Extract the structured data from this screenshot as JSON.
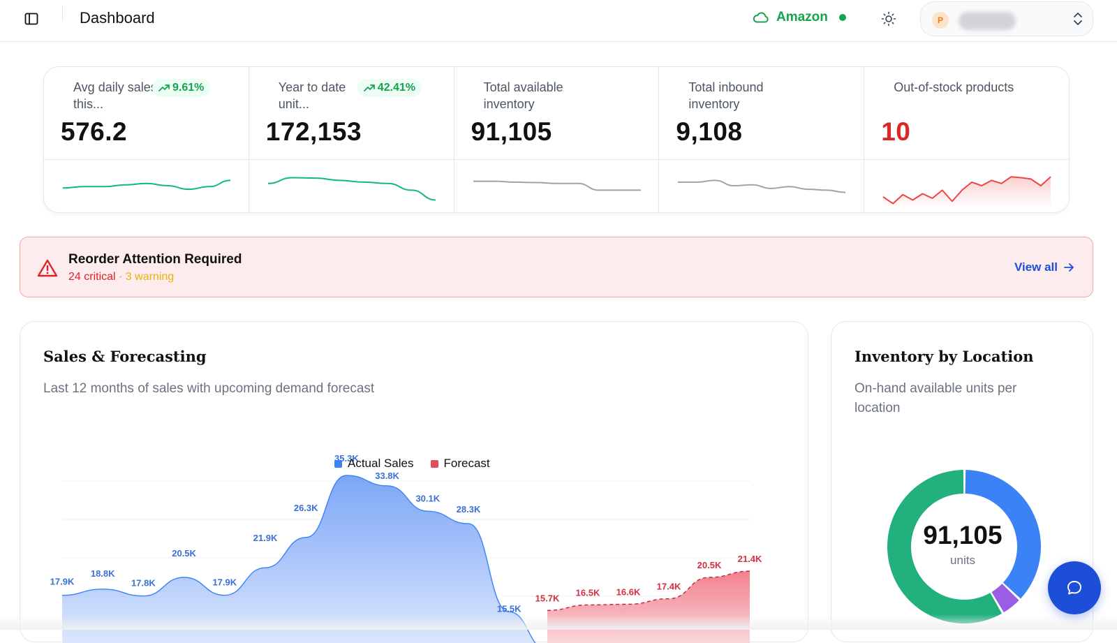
{
  "header": {
    "title": "Dashboard",
    "platform": "Amazon",
    "account_initial": "P"
  },
  "stats": [
    {
      "label": "Avg daily sales this...",
      "badge": "9.61%",
      "value": "576.2",
      "spark": [
        0.55,
        0.52,
        0.52,
        0.48,
        0.45,
        0.5,
        0.58,
        0.52,
        0.38
      ],
      "color": "#10b981"
    },
    {
      "label": "Year to date unit...",
      "badge": "42.41%",
      "value": "172,153",
      "spark": [
        0.45,
        0.32,
        0.33,
        0.38,
        0.42,
        0.45,
        0.6,
        0.82
      ],
      "color": "#10b981"
    },
    {
      "label": "Total available inventory",
      "badge": "",
      "value": "91,105",
      "spark": [
        0.4,
        0.4,
        0.42,
        0.43,
        0.45,
        0.45,
        0.6,
        0.6,
        0.6
      ],
      "color": "#9ca3af"
    },
    {
      "label": "Total inbound inventory",
      "badge": "",
      "value": "9,108",
      "spark": [
        0.42,
        0.42,
        0.38,
        0.5,
        0.48,
        0.56,
        0.52,
        0.58,
        0.6,
        0.65
      ],
      "color": "#9ca3af"
    },
    {
      "label": "Out-of-stock products",
      "badge": "",
      "value": "10",
      "value_color": "#dc2626",
      "spark": [
        0.75,
        0.9,
        0.7,
        0.82,
        0.68,
        0.78,
        0.6,
        0.85,
        0.6,
        0.42,
        0.5,
        0.38,
        0.45,
        0.3,
        0.32,
        0.35,
        0.5,
        0.3
      ],
      "color": "#ef4444"
    }
  ],
  "alert": {
    "title": "Reorder Attention Required",
    "critical": "24 critical",
    "separator": " · ",
    "warning": "3 warning",
    "action": "View all"
  },
  "sales_card": {
    "title": "Sales & Forecasting",
    "subtitle": "Last 12 months of sales with upcoming demand forecast"
  },
  "inventory_card": {
    "title": "Inventory by Location",
    "subtitle": "On-hand available units per location",
    "total": "91,105",
    "unit": "units"
  },
  "chart_data": [
    {
      "type": "area",
      "title": "Sales & Forecasting",
      "legend": [
        "Actual Sales",
        "Forecast"
      ],
      "legend_position": "top-center",
      "grid": true,
      "series": [
        {
          "name": "Actual Sales",
          "color": "#3b82f6",
          "values": [
            17.9,
            18.8,
            17.8,
            20.5,
            17.9,
            21.9,
            26.3,
            35.3,
            33.8,
            30.1,
            28.3,
            15.5
          ],
          "labels": [
            "17.9K",
            "18.8K",
            "17.8K",
            "20.5K",
            "17.9K",
            "21.9K",
            "26.3K",
            "35.3K",
            "33.8K",
            "30.1K",
            "28.3K",
            "15.5K"
          ]
        },
        {
          "name": "Forecast",
          "color": "#e24b5a",
          "values": [
            15.7,
            16.5,
            16.6,
            17.4,
            20.5,
            21.4
          ],
          "labels": [
            "15.7K",
            "16.5K",
            "16.6K",
            "17.4K",
            "20.5K",
            "21.4K"
          ]
        }
      ]
    },
    {
      "type": "pie",
      "title": "Inventory by Location",
      "total": 91105,
      "slices": [
        {
          "color": "#3b82f6",
          "fraction": 0.37
        },
        {
          "color": "#9b5de5",
          "fraction": 0.045
        },
        {
          "color": "#22b07d",
          "fraction": 0.585
        }
      ]
    }
  ]
}
